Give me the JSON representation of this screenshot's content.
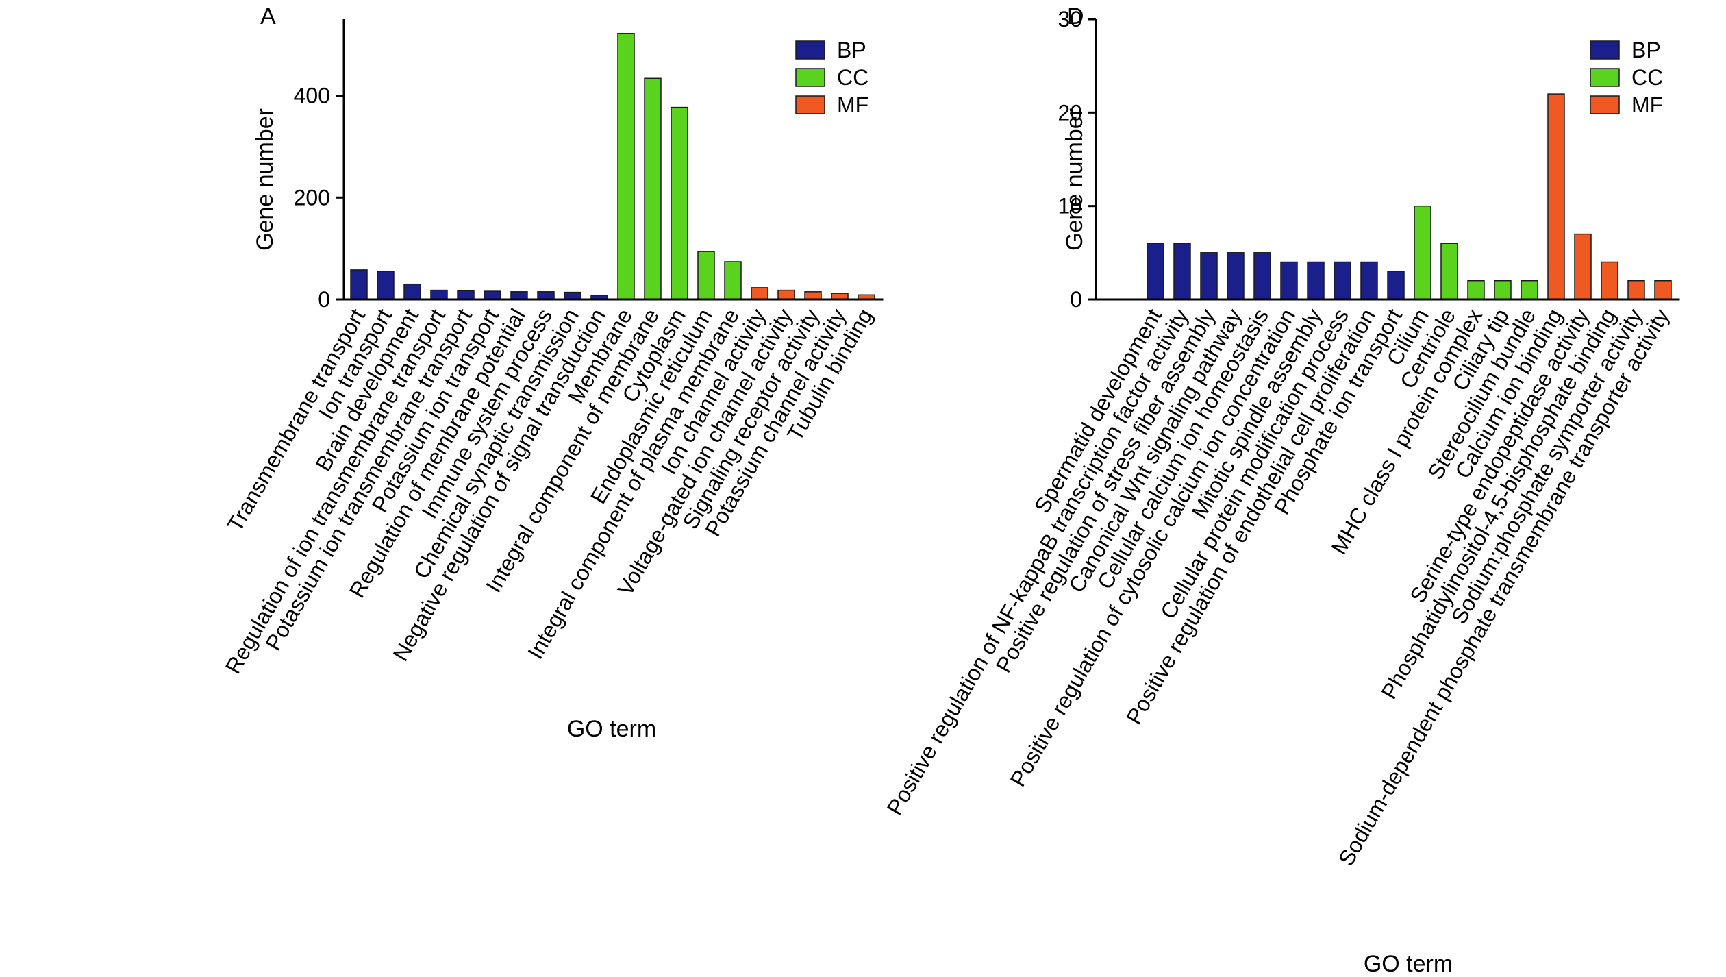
{
  "colors": {
    "BP": "#1b1f8c",
    "CC": "#5bd21e",
    "MF": "#f05a22"
  },
  "chart_data": [
    {
      "type": "bar",
      "panel_label": "A",
      "xlabel": "GO term",
      "ylabel": "Gene number",
      "ylim": [
        0,
        550
      ],
      "yticks": [
        0,
        200,
        400
      ],
      "legend_position": "top-right",
      "legend": [
        "BP",
        "CC",
        "MF"
      ],
      "categories": [
        "Transmembrane transport",
        "Ion transport",
        "Brain development",
        "Regulation of ion transmembrane transport",
        "Potassium ion transmembrane transport",
        "Potassium ion transport",
        "Regulation of membrane potential",
        "Immune system process",
        "Chemical synaptic transmission",
        "Negative regulation of signal transduction",
        "Membrane",
        "Integral component of membrane",
        "Cytoplasm",
        "Endoplasmic reticulum",
        "Integral component of plasma membrane",
        "Ion channel activity",
        "Voltage-gated ion channel activity",
        "Signaling receptor activity",
        "Potassium channel activity",
        "Tubulin binding"
      ],
      "groups": [
        "BP",
        "BP",
        "BP",
        "BP",
        "BP",
        "BP",
        "BP",
        "BP",
        "BP",
        "BP",
        "CC",
        "CC",
        "CC",
        "CC",
        "CC",
        "MF",
        "MF",
        "MF",
        "MF",
        "MF"
      ],
      "values": [
        58,
        55,
        30,
        18,
        17,
        16,
        15,
        15,
        14,
        8,
        522,
        434,
        377,
        94,
        74,
        23,
        18,
        15,
        12,
        9
      ]
    },
    {
      "type": "bar",
      "panel_label": "D",
      "xlabel": "GO term",
      "ylabel": "Gene number",
      "ylim": [
        0,
        30
      ],
      "yticks": [
        0,
        10,
        20,
        30
      ],
      "legend_position": "top-right",
      "legend": [
        "BP",
        "CC",
        "MF"
      ],
      "categories": [
        "Spermatid development",
        "Positive regulation of NF-kappaB transcription factor activity",
        "Positive regulation of stress fiber assembly",
        "Canonical Wnt signaling pathway",
        "Cellular calcium ion homeostasis",
        "Positive regulation of cytosolic calcium ion concentration",
        "Mitotic spindle assembly",
        "Cellular protein modification process",
        "Positive regulation of endothelial cell proliferation",
        "Phosphate ion transport",
        "Cilium",
        "Centriole",
        "MHC class I protein complex",
        "Ciliary tip",
        "Stereocilium bundle",
        "Calcium ion binding",
        "Serine-type endopeptidase activity",
        "Phosphatidylinositol-4,5-bisphosphate binding",
        "Sodium:phosphate symporter activity",
        "Sodium-dependent phosphate transmembrane transporter activity"
      ],
      "groups": [
        "BP",
        "BP",
        "BP",
        "BP",
        "BP",
        "BP",
        "BP",
        "BP",
        "BP",
        "BP",
        "CC",
        "CC",
        "CC",
        "CC",
        "CC",
        "MF",
        "MF",
        "MF",
        "MF",
        "MF"
      ],
      "values": [
        6,
        6,
        5,
        5,
        5,
        4,
        4,
        4,
        4,
        3,
        10,
        6,
        2,
        2,
        2,
        22,
        7,
        4,
        2,
        2
      ]
    }
  ]
}
